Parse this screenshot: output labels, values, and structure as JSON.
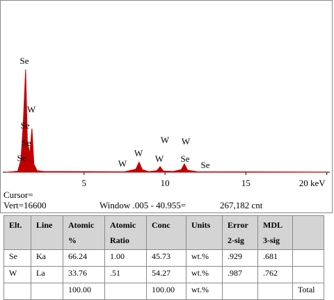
{
  "chart_data": {
    "type": "area",
    "color": "#c00000",
    "x": [
      0.2,
      0.9,
      1.1,
      1.25,
      1.39,
      1.5,
      1.65,
      1.78,
      1.9,
      2.1,
      2.5,
      7.5,
      8.2,
      8.4,
      8.6,
      9.0,
      9.5,
      9.7,
      9.9,
      10.5,
      11.0,
      11.2,
      11.4,
      12.0,
      20.0
    ],
    "values": [
      0,
      100,
      1200,
      5000,
      10100,
      3000,
      1800,
      4300,
      800,
      150,
      80,
      40,
      300,
      1000,
      250,
      60,
      150,
      550,
      120,
      80,
      250,
      820,
      200,
      50,
      20
    ],
    "xlim": [
      0,
      20.1
    ],
    "ylim": [
      0,
      16600
    ],
    "xticks": [
      5,
      10,
      15,
      {
        "value": 20,
        "label": "20 keV"
      }
    ],
    "annotations": [
      "Se",
      "W",
      "Se",
      "Se",
      "Se",
      "W",
      "W",
      "W",
      "W",
      "W",
      "Se",
      "Se"
    ],
    "cursor": "Cursor=",
    "vert": "Vert=16600",
    "window": "Window .005 - 40.955=",
    "counts": "267,182 cnt"
  },
  "table": {
    "header": [
      "Elt.",
      "Line",
      [
        "Atomic",
        "%"
      ],
      [
        "Atomic",
        "Ratio"
      ],
      "Conc",
      "Units",
      [
        "Error",
        "2-sig"
      ],
      [
        "MDL",
        "3-sig"
      ],
      null
    ],
    "rows": [
      [
        "Se",
        "Ka",
        "66.24",
        "1.00",
        "45.73",
        "wt.%",
        ".929",
        ".681",
        null
      ],
      [
        "W",
        "La",
        "33.76",
        ".51",
        "54.27",
        "wt.%",
        ".987",
        ".762",
        null
      ],
      [
        null,
        null,
        "100.00",
        null,
        "100.00",
        "wt.%",
        null,
        null,
        "Total"
      ]
    ]
  }
}
